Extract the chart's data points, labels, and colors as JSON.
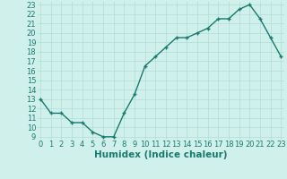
{
  "x": [
    0,
    1,
    2,
    3,
    4,
    5,
    6,
    7,
    8,
    9,
    10,
    11,
    12,
    13,
    14,
    15,
    16,
    17,
    18,
    19,
    20,
    21,
    22,
    23
  ],
  "y": [
    13,
    11.5,
    11.5,
    10.5,
    10.5,
    9.5,
    9.0,
    9.0,
    11.5,
    13.5,
    16.5,
    17.5,
    18.5,
    19.5,
    19.5,
    20.0,
    20.5,
    21.5,
    21.5,
    22.5,
    23.0,
    21.5,
    19.5,
    17.5
  ],
  "line_color": "#1a7a6e",
  "marker": "+",
  "marker_color": "#1a7a6e",
  "bg_color": "#cff0eb",
  "grid_color": "#b0ddd8",
  "xlabel": "Humidex (Indice chaleur)",
  "xlabel_color": "#1a7a6e",
  "ylim_min": 9,
  "ylim_max": 23,
  "xlim_min": 0,
  "xlim_max": 23,
  "yticks": [
    9,
    10,
    11,
    12,
    13,
    14,
    15,
    16,
    17,
    18,
    19,
    20,
    21,
    22,
    23
  ],
  "xticks": [
    0,
    1,
    2,
    3,
    4,
    5,
    6,
    7,
    8,
    9,
    10,
    11,
    12,
    13,
    14,
    15,
    16,
    17,
    18,
    19,
    20,
    21,
    22,
    23
  ],
  "tick_label_color": "#1a7a6e",
  "tick_label_fontsize": 6,
  "xlabel_fontsize": 7.5,
  "linewidth": 1.0,
  "markersize": 3.5
}
